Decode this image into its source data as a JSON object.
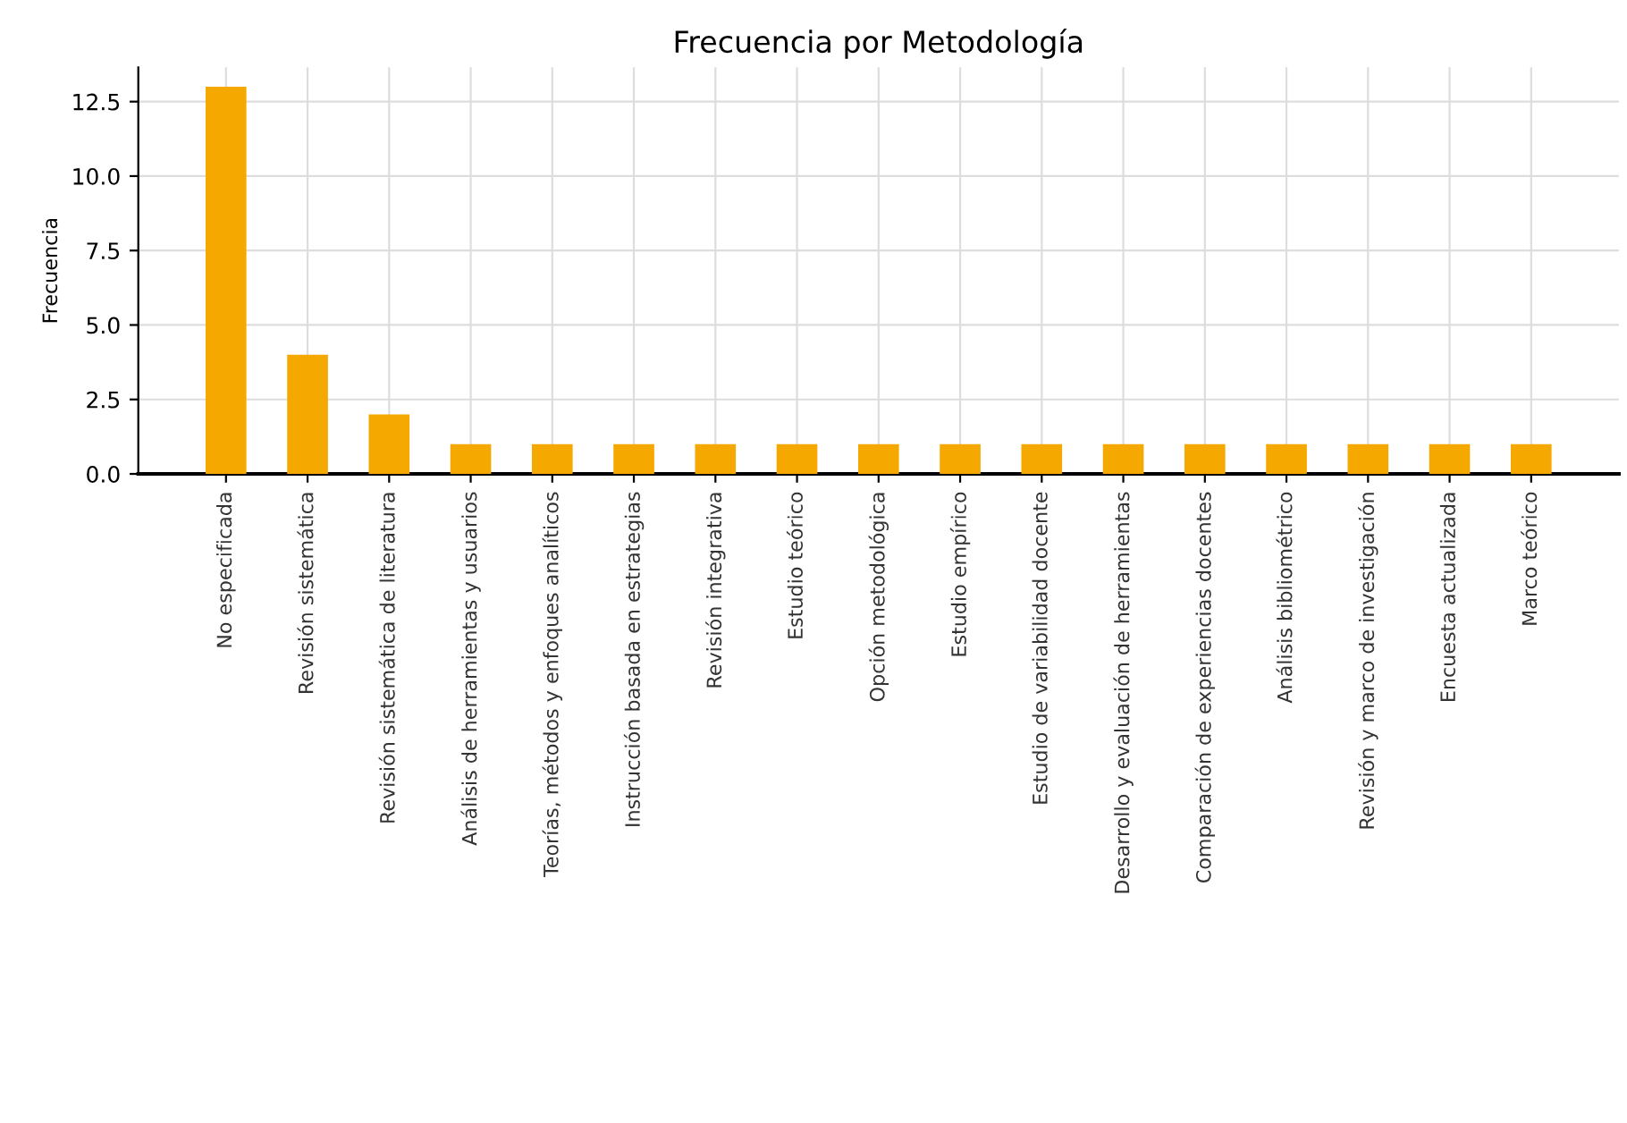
{
  "chart_data": {
    "type": "bar",
    "title": "Frecuencia por Metodología",
    "ylabel": "Frecuencia",
    "categories": [
      "No especificada",
      "Revisión sistemática",
      "Revisión sistemática de literatura",
      "Análisis de herramientas y usuarios",
      "Teorías, métodos y enfoques analíticos",
      "Instrucción basada en estrategias",
      "Revisión integrativa",
      "Estudio teórico",
      "Opción metodológica",
      "Estudio empírico",
      "Estudio de variabilidad docente",
      "Desarrollo y evaluación de herramientas",
      "Comparación de experiencias docentes",
      "Análisis bibliométrico",
      "Revisión y marco de investigación",
      "Encuesta actualizada",
      "Marco teórico"
    ],
    "values": [
      13,
      4,
      2,
      1,
      1,
      1,
      1,
      1,
      1,
      1,
      1,
      1,
      1,
      1,
      1,
      1,
      1
    ],
    "color": "#f5a800",
    "ylim": [
      0,
      13.65
    ],
    "yticks": [
      {
        "value": 0,
        "label": "0.0"
      },
      {
        "value": 2.5,
        "label": "2.5"
      },
      {
        "value": 5,
        "label": "5.0"
      },
      {
        "value": 7.5,
        "label": "7.5"
      },
      {
        "value": 10,
        "label": "10.0"
      },
      {
        "value": 12.5,
        "label": "12.5"
      }
    ],
    "grid": true
  }
}
